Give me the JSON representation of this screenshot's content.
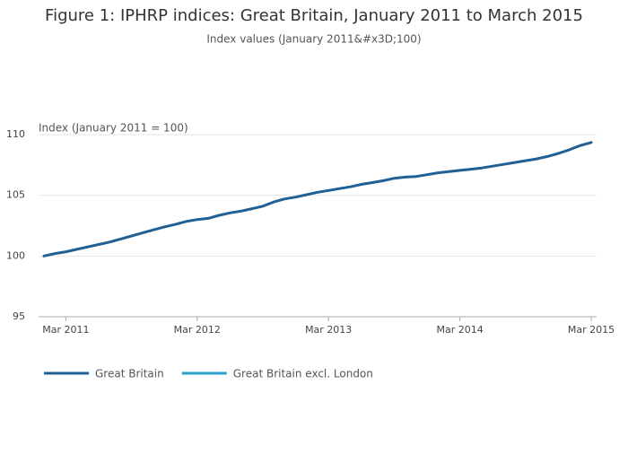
{
  "chart_data": {
    "type": "line",
    "title": "Figure 1: IPHRP indices: Great Britain, January 2011 to March 2015",
    "subtitle": "Index values (January 2011&#x3D;100)",
    "y_label": "Index (January 2011 = 100)",
    "x": [
      "Jan 2011",
      "Feb 2011",
      "Mar 2011",
      "Apr 2011",
      "May 2011",
      "Jun 2011",
      "Jul 2011",
      "Aug 2011",
      "Sep 2011",
      "Oct 2011",
      "Nov 2011",
      "Dec 2011",
      "Jan 2012",
      "Feb 2012",
      "Mar 2012",
      "Apr 2012",
      "May 2012",
      "Jun 2012",
      "Jul 2012",
      "Aug 2012",
      "Sep 2012",
      "Oct 2012",
      "Nov 2012",
      "Dec 2012",
      "Jan 2013",
      "Feb 2013",
      "Mar 2013",
      "Apr 2013",
      "May 2013",
      "Jun 2013",
      "Jul 2013",
      "Aug 2013",
      "Sep 2013",
      "Oct 2013",
      "Nov 2013",
      "Dec 2013",
      "Jan 2014",
      "Feb 2014",
      "Mar 2014",
      "Apr 2014",
      "May 2014",
      "Jun 2014",
      "Jul 2014",
      "Aug 2014",
      "Sep 2014",
      "Oct 2014",
      "Nov 2014",
      "Dec 2014",
      "Jan 2015",
      "Feb 2015",
      "Mar 2015"
    ],
    "xticks": [
      "Mar 2011",
      "Mar 2012",
      "Mar 2013",
      "Mar 2014",
      "Mar 2015"
    ],
    "series": [
      {
        "name": "Great Britain",
        "color": "#206095",
        "values": [
          100.0,
          100.2,
          100.35,
          100.55,
          100.75,
          100.95,
          101.15,
          101.4,
          101.65,
          101.9,
          102.15,
          102.4,
          102.6,
          102.85,
          103.0,
          103.1,
          103.35,
          103.55,
          103.7,
          103.9,
          104.1,
          104.45,
          104.7,
          104.85,
          105.05,
          105.25,
          105.4,
          105.55,
          105.7,
          105.9,
          106.05,
          106.2,
          106.4,
          106.5,
          106.55,
          106.7,
          106.85,
          106.95,
          107.05,
          107.15,
          107.25,
          107.4,
          107.55,
          107.7,
          107.85,
          108.0,
          108.2,
          108.45,
          108.75,
          109.1,
          109.35
        ]
      },
      {
        "name": "Great Britain excl. London",
        "color": "#27a0cc",
        "values": [
          null,
          null,
          null,
          null,
          null,
          null,
          null,
          null,
          null,
          null,
          null,
          null,
          null,
          null,
          null,
          null,
          null,
          null,
          null,
          null,
          null,
          null,
          null,
          null,
          null,
          null,
          null,
          null,
          null,
          null,
          null,
          null,
          null,
          null,
          null,
          null,
          null,
          null,
          null,
          null,
          null,
          null,
          null,
          null,
          null,
          null,
          null,
          null,
          null,
          null,
          null
        ]
      }
    ],
    "ylim": [
      95,
      110
    ],
    "yticks": [
      95,
      100,
      105,
      110
    ],
    "grid": true,
    "legend": "bottom"
  }
}
